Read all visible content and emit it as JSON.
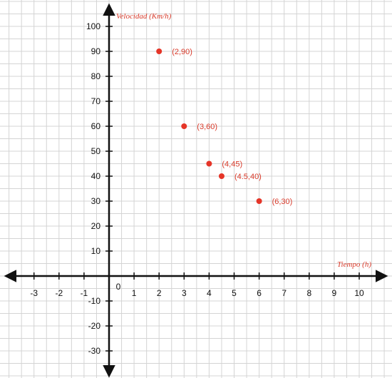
{
  "chart_data": {
    "type": "scatter",
    "xlabel": "Tiempo (h)",
    "ylabel": "Velocidad (Km/h)",
    "xlim": [
      -4,
      11
    ],
    "ylim": [
      -40,
      110
    ],
    "x_ticks": [
      -3,
      -2,
      -1,
      1,
      2,
      3,
      4,
      5,
      6,
      7,
      8,
      9,
      10
    ],
    "y_ticks": [
      100,
      90,
      80,
      70,
      60,
      50,
      40,
      30,
      20,
      10,
      -10,
      -20,
      -30
    ],
    "origin_label": "0",
    "grid": true,
    "point_color": "#e53528",
    "label_color": "#d93b2b",
    "points": [
      {
        "x": 2,
        "y": 90,
        "label": "(2,90)"
      },
      {
        "x": 3,
        "y": 60,
        "label": "(3,60)"
      },
      {
        "x": 4,
        "y": 45,
        "label": "(4,45)"
      },
      {
        "x": 4.5,
        "y": 40,
        "label": "(4.5,40)"
      },
      {
        "x": 6,
        "y": 30,
        "label": "(6,30)"
      }
    ]
  }
}
